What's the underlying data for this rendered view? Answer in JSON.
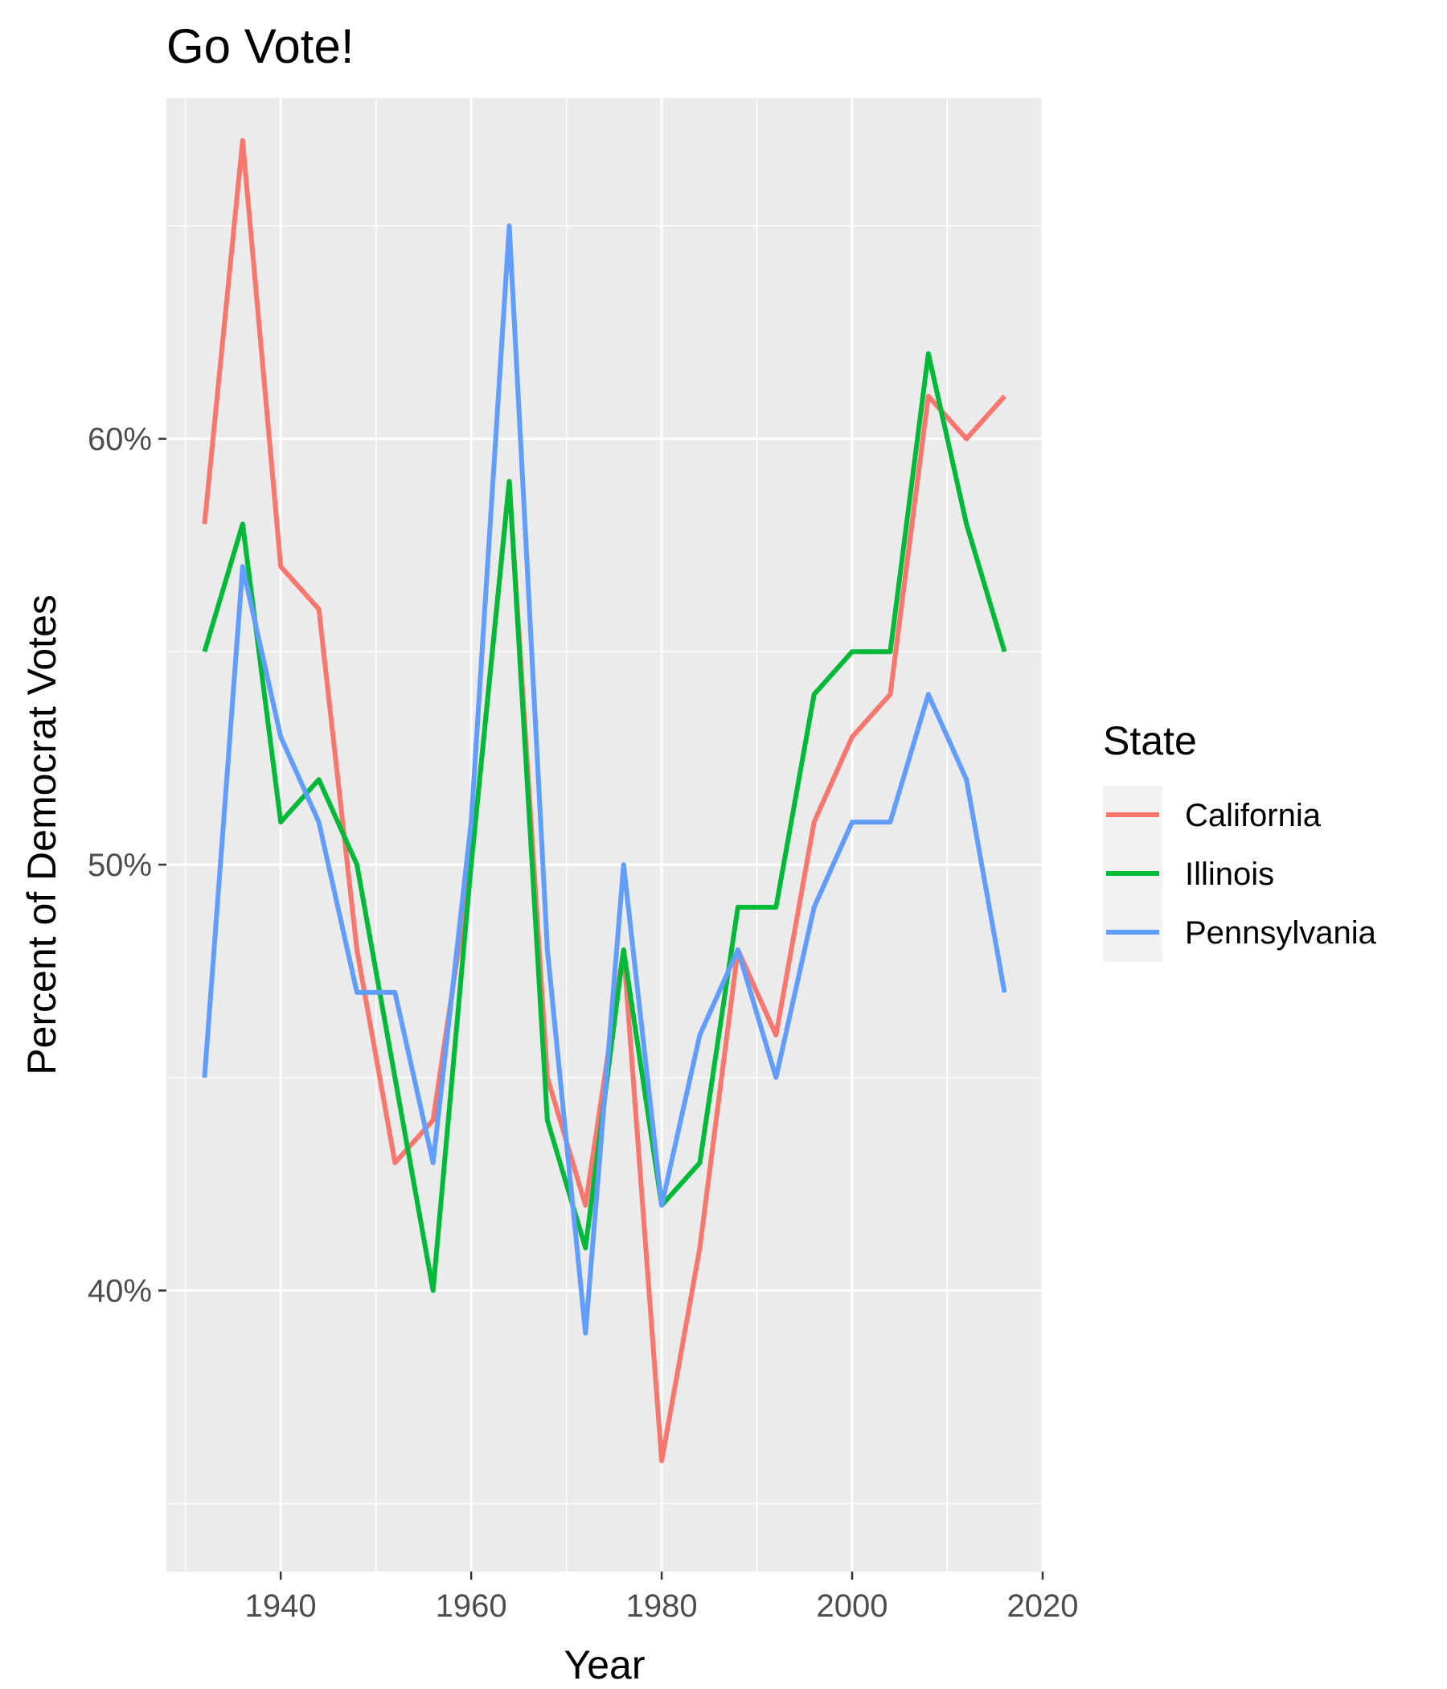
{
  "chart_data": {
    "type": "line",
    "title": "Go Vote!",
    "xlabel": "Year",
    "ylabel": "Percent of Democrat Votes",
    "xlim": [
      1928,
      2020
    ],
    "ylim": [
      33.4,
      68.0
    ],
    "x_ticks": [
      1940,
      1960,
      1980,
      2000,
      2020
    ],
    "x_tick_labels": [
      "1940",
      "1960",
      "1980",
      "2000",
      "2020"
    ],
    "x_minor_ticks": [
      1930,
      1950,
      1970,
      1990,
      2010
    ],
    "y_ticks": [
      40,
      50,
      60
    ],
    "y_tick_labels": [
      "40%",
      "50%",
      "60%"
    ],
    "y_minor_ticks": [
      35,
      45,
      55,
      65
    ],
    "grid": true,
    "legend": {
      "title": "State",
      "position": "right"
    },
    "x": [
      1932,
      1936,
      1940,
      1944,
      1948,
      1952,
      1956,
      1960,
      1964,
      1968,
      1972,
      1976,
      1980,
      1984,
      1988,
      1992,
      1996,
      2000,
      2004,
      2008,
      2012,
      2016
    ],
    "series": [
      {
        "name": "California",
        "color": "#F8766D",
        "values": [
          58,
          67,
          57,
          56,
          48,
          43,
          44,
          50,
          59,
          45,
          42,
          48,
          36,
          41,
          48,
          46,
          51,
          53,
          54,
          61,
          60,
          61
        ]
      },
      {
        "name": "Illinois",
        "color": "#00BA38",
        "values": [
          55,
          58,
          51,
          52,
          50,
          45,
          40,
          50,
          59,
          44,
          41,
          48,
          42,
          43,
          49,
          49,
          54,
          55,
          55,
          62,
          58,
          55
        ]
      },
      {
        "name": "Pennsylvania",
        "color": "#619CFF",
        "values": [
          45,
          57,
          53,
          51,
          47,
          47,
          43,
          51,
          65,
          48,
          39,
          50,
          42,
          46,
          48,
          45,
          49,
          51,
          51,
          54,
          52,
          47
        ]
      }
    ]
  }
}
